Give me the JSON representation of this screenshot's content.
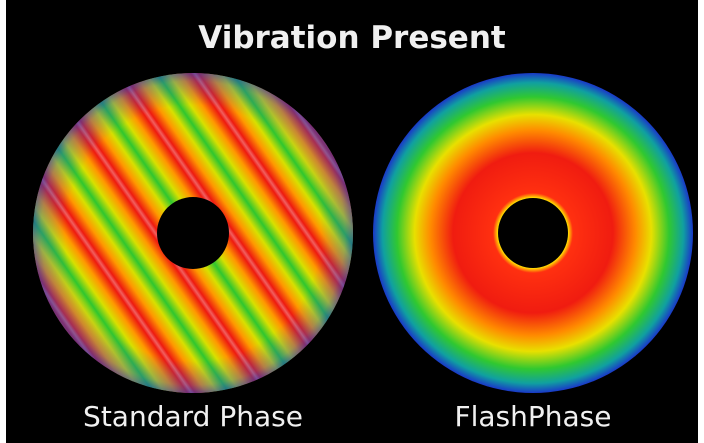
{
  "title": "Vibration Present",
  "panels": [
    {
      "label": "Standard Phase"
    },
    {
      "label": "FlashPhase"
    }
  ]
}
